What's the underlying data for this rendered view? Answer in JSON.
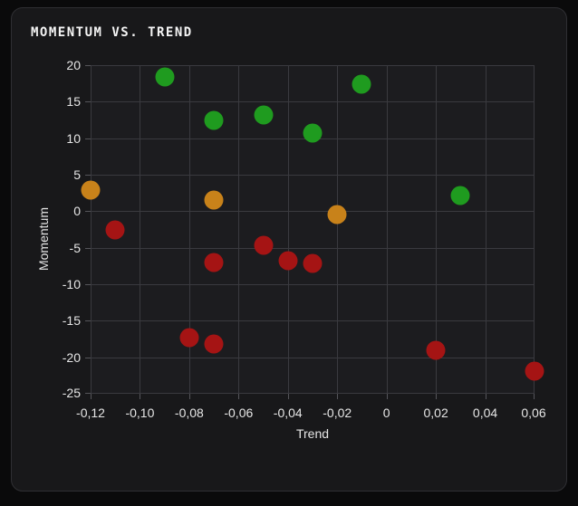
{
  "card": {
    "title": "MOMENTUM VS. TREND"
  },
  "chart_data": {
    "type": "scatter",
    "title": "MOMENTUM VS. TREND",
    "xlabel": "Trend",
    "ylabel": "Momentum",
    "xlim": [
      -0.12,
      0.06
    ],
    "ylim": [
      -25,
      20
    ],
    "grid": true,
    "legend": false,
    "x_ticks": {
      "values": [
        -0.12,
        -0.1,
        -0.08,
        -0.06,
        -0.04,
        -0.02,
        0,
        0.02,
        0.04,
        0.06
      ],
      "labels": [
        "-0,12",
        "-0,10",
        "-0,08",
        "-0,06",
        "-0,04",
        "-0,02",
        "0",
        "0,02",
        "0,04",
        "0,06"
      ]
    },
    "y_ticks": {
      "values": [
        20,
        15,
        10,
        5,
        0,
        -5,
        -10,
        -15,
        -20,
        -25
      ],
      "labels": [
        "20",
        "15",
        "10",
        "5",
        "0",
        "-5",
        "-10",
        "-15",
        "-20",
        "-25"
      ]
    },
    "series": [
      {
        "name": "green",
        "color": "#1f9b1f",
        "points": [
          {
            "x": -0.09,
            "y": 18.4
          },
          {
            "x": -0.07,
            "y": 12.5
          },
          {
            "x": -0.05,
            "y": 13.2
          },
          {
            "x": -0.03,
            "y": 10.7
          },
          {
            "x": -0.01,
            "y": 17.4
          },
          {
            "x": 0.03,
            "y": 2.1
          }
        ]
      },
      {
        "name": "orange",
        "color": "#c8821a",
        "points": [
          {
            "x": -0.12,
            "y": 2.9
          },
          {
            "x": -0.07,
            "y": 1.5
          },
          {
            "x": -0.02,
            "y": -0.4
          }
        ]
      },
      {
        "name": "red",
        "color": "#a51414",
        "points": [
          {
            "x": -0.11,
            "y": -2.5
          },
          {
            "x": -0.08,
            "y": -17.3
          },
          {
            "x": -0.07,
            "y": -7.0
          },
          {
            "x": -0.07,
            "y": -18.2
          },
          {
            "x": -0.05,
            "y": -4.7
          },
          {
            "x": -0.04,
            "y": -6.8
          },
          {
            "x": -0.03,
            "y": -7.2
          },
          {
            "x": 0.02,
            "y": -19.0
          },
          {
            "x": 0.06,
            "y": -21.9
          }
        ]
      }
    ],
    "colors": {
      "background_outer": "#0a0a0b",
      "background_card": "#18181a",
      "card_border": "#2f2f33",
      "plot_background": "#1c1c1f",
      "grid": "#3a3a3f",
      "text": "#e6e6e6",
      "title_text": "#f5f5f5"
    }
  }
}
